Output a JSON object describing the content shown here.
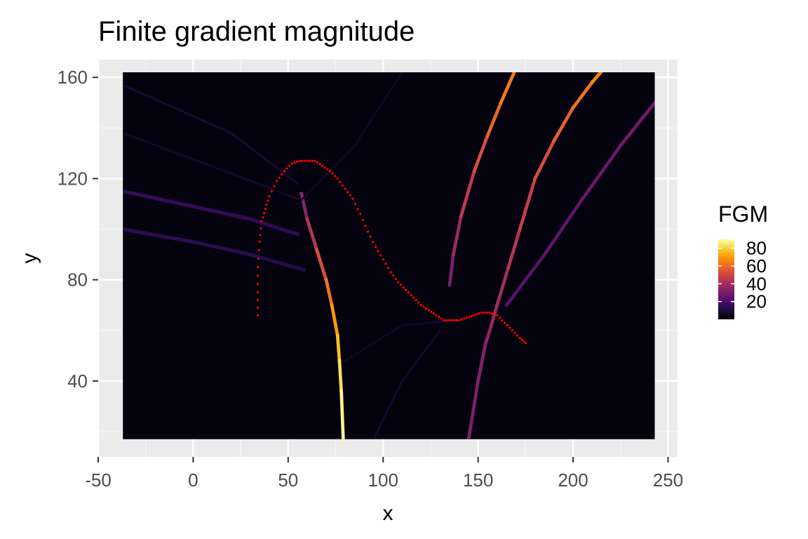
{
  "chart_data": {
    "type": "heatmap",
    "title": "Finite gradient magnitude",
    "xlabel": "x",
    "ylabel": "y",
    "xlim": [
      -50,
      255
    ],
    "ylim": [
      10,
      167
    ],
    "raster_extent": {
      "x": [
        -37,
        243
      ],
      "y": [
        17,
        162
      ]
    },
    "grid": true,
    "x_ticks": [
      -50,
      0,
      50,
      100,
      150,
      200,
      250
    ],
    "x_tick_labels": [
      "-50",
      "0",
      "50",
      "100",
      "150",
      "200",
      "250"
    ],
    "y_ticks": [
      40,
      80,
      120,
      160
    ],
    "y_tick_labels": [
      "40",
      "80",
      "120",
      "160"
    ],
    "legend": {
      "title": "FGM",
      "placement": "right",
      "range": [
        0,
        90
      ],
      "ticks": [
        20,
        40,
        60,
        80
      ],
      "tick_labels": [
        "20",
        "40",
        "60",
        "80"
      ],
      "palette": [
        "#000004",
        "#1b0c41",
        "#4a0c6b",
        "#781c6d",
        "#a52c60",
        "#cf4446",
        "#ed6925",
        "#fb9b06",
        "#f7d13d",
        "#fcffa4"
      ]
    },
    "bands": [
      {
        "name": "steep-left-ridge",
        "width": 1.3,
        "points": [
          [
            57,
            114
          ],
          [
            60,
            104
          ],
          [
            65,
            92
          ],
          [
            70,
            80
          ],
          [
            73,
            70
          ],
          [
            76,
            58
          ],
          [
            77,
            48
          ],
          [
            78,
            36
          ],
          [
            79,
            17
          ]
        ],
        "values": [
          30,
          38,
          48,
          58,
          66,
          74,
          80,
          86,
          90
        ]
      },
      {
        "name": "middle-ridge",
        "width": 1.3,
        "points": [
          [
            145,
            17
          ],
          [
            150,
            40
          ],
          [
            154,
            55
          ],
          [
            157,
            62
          ],
          [
            160,
            70
          ],
          [
            166,
            85
          ],
          [
            172,
            100
          ],
          [
            180,
            120
          ],
          [
            190,
            135
          ],
          [
            200,
            148
          ],
          [
            210,
            158
          ],
          [
            218,
            165
          ]
        ],
        "values": [
          30,
          32,
          34,
          36,
          38,
          42,
          46,
          50,
          55,
          60,
          64,
          68
        ]
      },
      {
        "name": "upper-ridge",
        "width": 1.3,
        "points": [
          [
            135,
            78
          ],
          [
            137,
            90
          ],
          [
            141,
            105
          ],
          [
            148,
            123
          ],
          [
            155,
            137
          ],
          [
            162,
            150
          ],
          [
            169,
            162
          ]
        ],
        "values": [
          28,
          34,
          42,
          50,
          56,
          62,
          66
        ]
      },
      {
        "name": "right-ridge",
        "width": 1.3,
        "points": [
          [
            165,
            70
          ],
          [
            185,
            90
          ],
          [
            205,
            112
          ],
          [
            225,
            133
          ],
          [
            243,
            150
          ]
        ],
        "values": [
          22,
          24,
          26,
          28,
          30
        ]
      },
      {
        "name": "left-streak-upper",
        "width": 1.4,
        "points": [
          [
            -37,
            115
          ],
          [
            0,
            109
          ],
          [
            30,
            104
          ],
          [
            55,
            98
          ]
        ],
        "values": [
          16,
          16,
          15,
          14
        ]
      },
      {
        "name": "left-streak-lower",
        "width": 1.4,
        "points": [
          [
            -37,
            100
          ],
          [
            0,
            95
          ],
          [
            30,
            90
          ],
          [
            58,
            84
          ]
        ],
        "values": [
          14,
          14,
          13,
          12
        ]
      },
      {
        "name": "faint-a",
        "width": 0.8,
        "points": [
          [
            -37,
            157
          ],
          [
            20,
            138
          ],
          [
            55,
            118
          ]
        ],
        "values": [
          8,
          8,
          8
        ]
      },
      {
        "name": "faint-b",
        "width": 0.8,
        "points": [
          [
            -37,
            138
          ],
          [
            20,
            122
          ],
          [
            55,
            112
          ]
        ],
        "values": [
          7,
          7,
          7
        ]
      },
      {
        "name": "faint-c",
        "width": 0.8,
        "points": [
          [
            55,
            110
          ],
          [
            85,
            133
          ],
          [
            110,
            162
          ]
        ],
        "values": [
          6,
          6,
          6
        ]
      },
      {
        "name": "faint-d",
        "width": 0.8,
        "points": [
          [
            95,
            17
          ],
          [
            110,
            40
          ],
          [
            130,
            60
          ]
        ],
        "values": [
          7,
          7,
          7
        ]
      },
      {
        "name": "faint-e",
        "width": 0.8,
        "points": [
          [
            80,
            48
          ],
          [
            110,
            62
          ],
          [
            140,
            64
          ]
        ],
        "values": [
          6,
          6,
          6
        ]
      }
    ],
    "contour": {
      "color": "#ff0000",
      "points": [
        [
          34,
          66
        ],
        [
          34,
          75
        ],
        [
          34,
          85
        ],
        [
          35,
          95
        ],
        [
          36,
          103
        ],
        [
          38,
          108
        ],
        [
          40,
          113
        ],
        [
          44,
          119
        ],
        [
          48,
          123
        ],
        [
          52,
          126
        ],
        [
          56,
          127
        ],
        [
          60,
          127
        ],
        [
          64,
          127
        ],
        [
          68,
          125
        ],
        [
          72,
          123
        ],
        [
          76,
          120
        ],
        [
          80,
          116
        ],
        [
          84,
          112
        ],
        [
          88,
          106
        ],
        [
          92,
          99
        ],
        [
          96,
          93
        ],
        [
          100,
          88
        ],
        [
          104,
          83
        ],
        [
          108,
          79
        ],
        [
          112,
          76
        ],
        [
          116,
          73
        ],
        [
          120,
          70
        ],
        [
          124,
          68
        ],
        [
          128,
          66
        ],
        [
          132,
          64
        ],
        [
          136,
          64
        ],
        [
          140,
          64
        ],
        [
          144,
          65
        ],
        [
          148,
          66
        ],
        [
          152,
          67
        ],
        [
          156,
          67
        ],
        [
          160,
          66
        ],
        [
          164,
          63
        ],
        [
          168,
          60
        ],
        [
          172,
          57
        ],
        [
          175,
          55
        ]
      ]
    }
  }
}
